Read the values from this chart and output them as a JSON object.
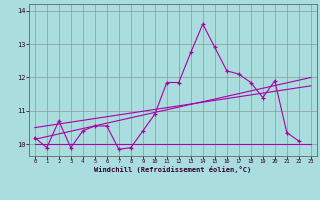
{
  "title": "",
  "xlabel": "Windchill (Refroidissement éolien,°C)",
  "bg_color": "#aadddd",
  "line_color": "#aa00aa",
  "series1_x": [
    0,
    1,
    2,
    3,
    4,
    5,
    6,
    7,
    8,
    9,
    10,
    11,
    12,
    13,
    14,
    15,
    16,
    17,
    18,
    19,
    20,
    21,
    22
  ],
  "series1_y": [
    10.2,
    9.9,
    10.7,
    9.9,
    10.4,
    10.55,
    10.55,
    9.85,
    9.9,
    10.4,
    10.9,
    11.85,
    11.85,
    12.75,
    13.6,
    12.9,
    12.2,
    12.1,
    11.85,
    11.4,
    11.9,
    10.35,
    10.1
  ],
  "series2_x": [
    0,
    23
  ],
  "series2_y": [
    10.0,
    10.0
  ],
  "series3_x": [
    0,
    23
  ],
  "series3_y": [
    10.15,
    12.0
  ],
  "series4_x": [
    0,
    23
  ],
  "series4_y": [
    10.5,
    11.75
  ],
  "xlim": [
    -0.5,
    23.5
  ],
  "ylim": [
    9.65,
    14.2
  ],
  "yticks": [
    10,
    11,
    12,
    13,
    14
  ],
  "xticks": [
    0,
    1,
    2,
    3,
    4,
    5,
    6,
    7,
    8,
    9,
    10,
    11,
    12,
    13,
    14,
    15,
    16,
    17,
    18,
    19,
    20,
    21,
    22,
    23
  ]
}
